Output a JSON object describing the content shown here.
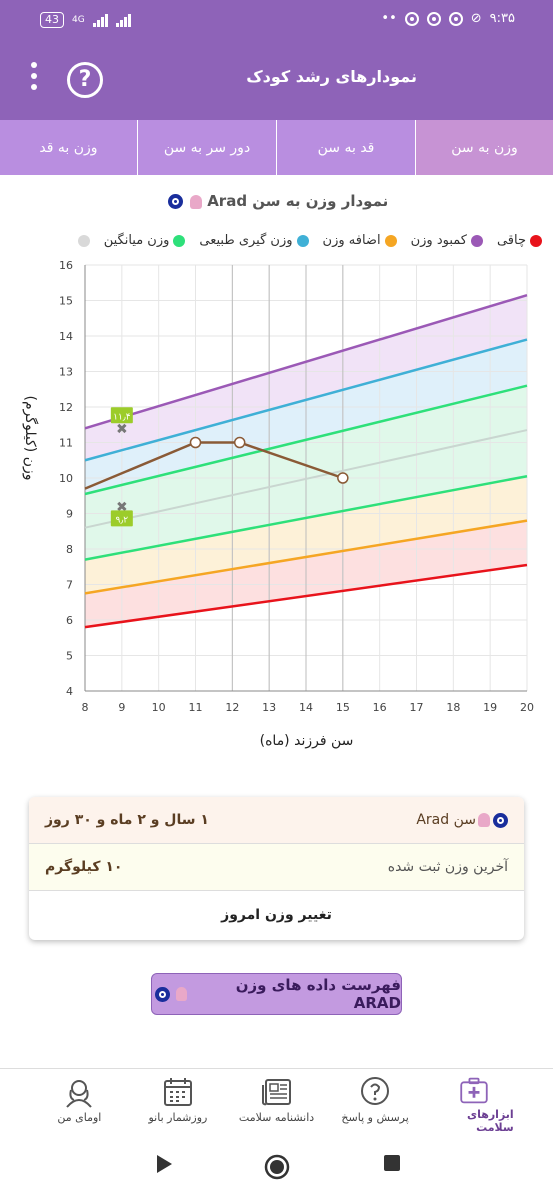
{
  "status_bar": {
    "battery": "43",
    "network": "4G",
    "time": "۹:۳۵"
  },
  "header": {
    "title": "نمودارهای رشد کودک",
    "help_icon": "question-circle-icon",
    "menu_icon": "more-vert-icon"
  },
  "tabs": [
    {
      "label": "وزن به سن",
      "active": true
    },
    {
      "label": "قد به سن",
      "active": false
    },
    {
      "label": "دور سر به سن",
      "active": false
    },
    {
      "label": "وزن به قد",
      "active": false
    }
  ],
  "chart_title": "نمودار وزن به سن Arad",
  "legend": [
    {
      "label": "چاقی",
      "color": "#e8131b"
    },
    {
      "label": "کمبود وزن",
      "color": "#9b59b6"
    },
    {
      "label": "اضافه وزن",
      "color": "#f5a623"
    },
    {
      "label": "وزن گیری طبیعی",
      "color": "#3fb0d6"
    },
    {
      "label": "وزن میانگین",
      "color": "#2ee07a"
    },
    {
      "label": "",
      "color": "#d9d9d9"
    }
  ],
  "chart_data": {
    "type": "line",
    "title": "",
    "xlabel": "سن فرزند (ماه)",
    "ylabel": "وزن (کیلوگرم)",
    "xlim": [
      8,
      20
    ],
    "ylim": [
      4,
      16
    ],
    "x_ticks": [
      8,
      9,
      10,
      11,
      12,
      13,
      14,
      15,
      16,
      17,
      18,
      19,
      20
    ],
    "y_ticks": [
      4,
      5,
      6,
      7,
      8,
      9,
      10,
      11,
      12,
      13,
      14,
      15,
      16
    ],
    "grid": true,
    "reference_curves": [
      {
        "color": "#e8131b",
        "points": [
          [
            8,
            5.8
          ],
          [
            20,
            7.55
          ]
        ]
      },
      {
        "color": "#f5a623",
        "points": [
          [
            8,
            6.75
          ],
          [
            20,
            8.8
          ]
        ]
      },
      {
        "color": "#2ee07a",
        "points": [
          [
            8,
            7.7
          ],
          [
            20,
            10.05
          ]
        ]
      },
      {
        "color": "#c9d6d0",
        "points": [
          [
            8,
            8.6
          ],
          [
            20,
            11.35
          ]
        ]
      },
      {
        "color": "#2ee07a",
        "points": [
          [
            8,
            9.55
          ],
          [
            20,
            12.6
          ]
        ]
      },
      {
        "color": "#3fb0d6",
        "points": [
          [
            8,
            10.5
          ],
          [
            20,
            13.9
          ]
        ]
      },
      {
        "color": "#9b59b6",
        "points": [
          [
            8,
            11.4
          ],
          [
            20,
            15.15
          ]
        ]
      }
    ],
    "series": [
      {
        "color": "#8a5a36",
        "points": [
          [
            8,
            9.7
          ],
          [
            11,
            11.0
          ],
          [
            12.2,
            11.0
          ],
          [
            15,
            10.0
          ]
        ]
      }
    ],
    "markers": [
      {
        "x": 9,
        "y": 11.4,
        "label": "۱۱٫۴"
      },
      {
        "x": 9,
        "y": 9.2,
        "label": "۹٫۲"
      }
    ]
  },
  "info_card": {
    "age_label": "سن Arad",
    "age_value": "۱ سال و ۲ ماه و ۳۰ روز",
    "last_weight_label": "آخرین وزن ثبت شده",
    "last_weight_value": "۱۰ کیلوگرم",
    "change_weight_button": "تغییر وزن امروز"
  },
  "list_button": "فهرست داده های وزن ARAD",
  "bottom_nav": [
    {
      "label": "ابزارهای سلامت",
      "icon": "medical-kit-icon",
      "active": true
    },
    {
      "label": "پرسش و پاسخ",
      "icon": "question-bubble-icon",
      "active": false
    },
    {
      "label": "دانشنامه سلامت",
      "icon": "newspaper-icon",
      "active": false
    },
    {
      "label": "روزشمار بانو",
      "icon": "calendar-icon",
      "active": false
    },
    {
      "label": "اومای من",
      "icon": "woman-avatar-icon",
      "active": false
    }
  ]
}
